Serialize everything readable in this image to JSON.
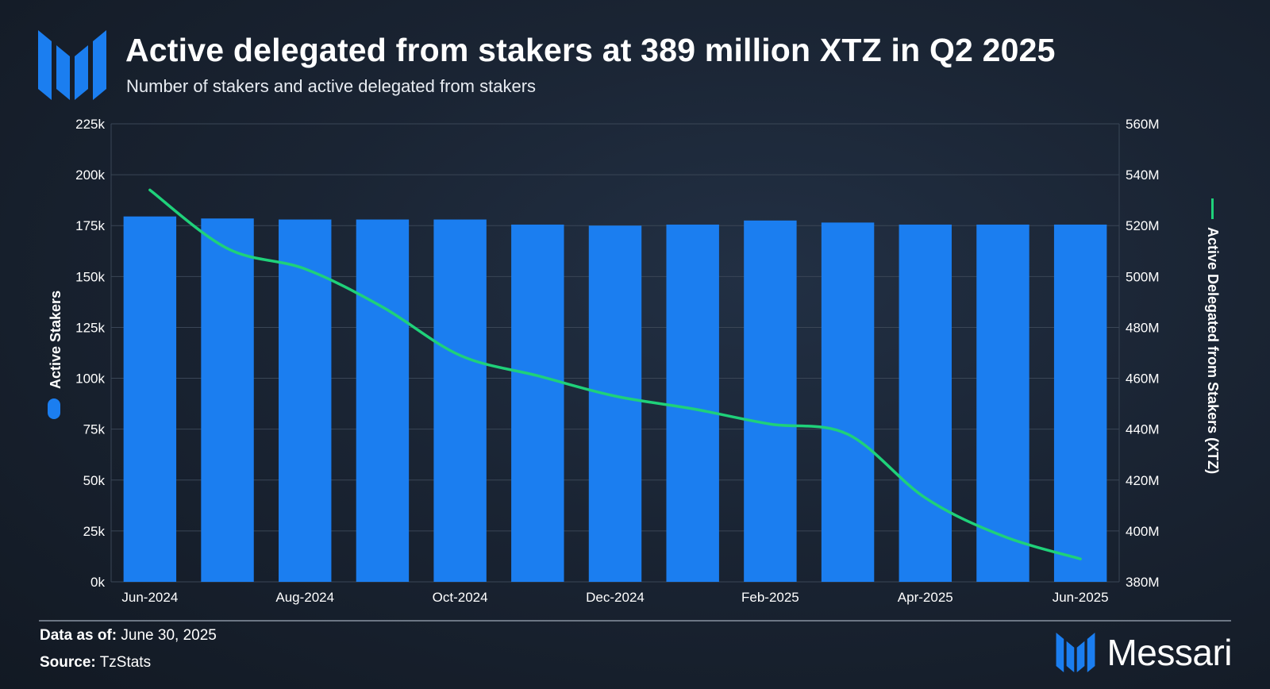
{
  "header": {
    "title": "Active delegated from stakers at 389 million XTZ in Q2 2025",
    "subtitle": "Number of stakers and active delegated from stakers"
  },
  "colors": {
    "bar": "#1b7ef0",
    "line": "#1fd17a",
    "grid": "#3a4656"
  },
  "chart_data": {
    "type": "bar",
    "categories": [
      "Jun-2024",
      "Jul-2024",
      "Aug-2024",
      "Sep-2024",
      "Oct-2024",
      "Nov-2024",
      "Dec-2024",
      "Jan-2025",
      "Feb-2025",
      "Mar-2025",
      "Apr-2025",
      "May-2025",
      "Jun-2025"
    ],
    "x_tick_labels": [
      "Jun-2024",
      "Aug-2024",
      "Oct-2024",
      "Dec-2024",
      "Feb-2025",
      "Apr-2025",
      "Jun-2025"
    ],
    "series": [
      {
        "name": "Active Stakers",
        "type": "bar",
        "axis": "left",
        "values": [
          179500,
          178500,
          178000,
          178000,
          178000,
          175500,
          175000,
          175500,
          177500,
          176500,
          175500,
          175500,
          175500
        ]
      },
      {
        "name": "Active Delegated from Stakers (XTZ)",
        "type": "line",
        "axis": "right",
        "values": [
          534000,
          511000,
          503000,
          488000,
          469000,
          461000,
          453000,
          448000,
          442000,
          438000,
          413000,
          398000,
          389000
        ]
      }
    ],
    "y_left": {
      "label": "Active Stakers",
      "min": 0,
      "max": 225000,
      "ticks": [
        "0k",
        "25k",
        "50k",
        "75k",
        "100k",
        "125k",
        "150k",
        "175k",
        "200k",
        "225k"
      ]
    },
    "y_right": {
      "label": "Active Delegated from Stakers (XTZ)",
      "min": 380000000,
      "max": 560000000,
      "ticks": [
        "380M",
        "400M",
        "420M",
        "440M",
        "460M",
        "480M",
        "500M",
        "520M",
        "540M",
        "560M"
      ]
    },
    "grid": true
  },
  "footer": {
    "data_as_of_label": "Data as of:",
    "data_as_of_value": "June 30, 2025",
    "source_label": "Source:",
    "source_value": "TzStats",
    "brand": "Messari"
  }
}
